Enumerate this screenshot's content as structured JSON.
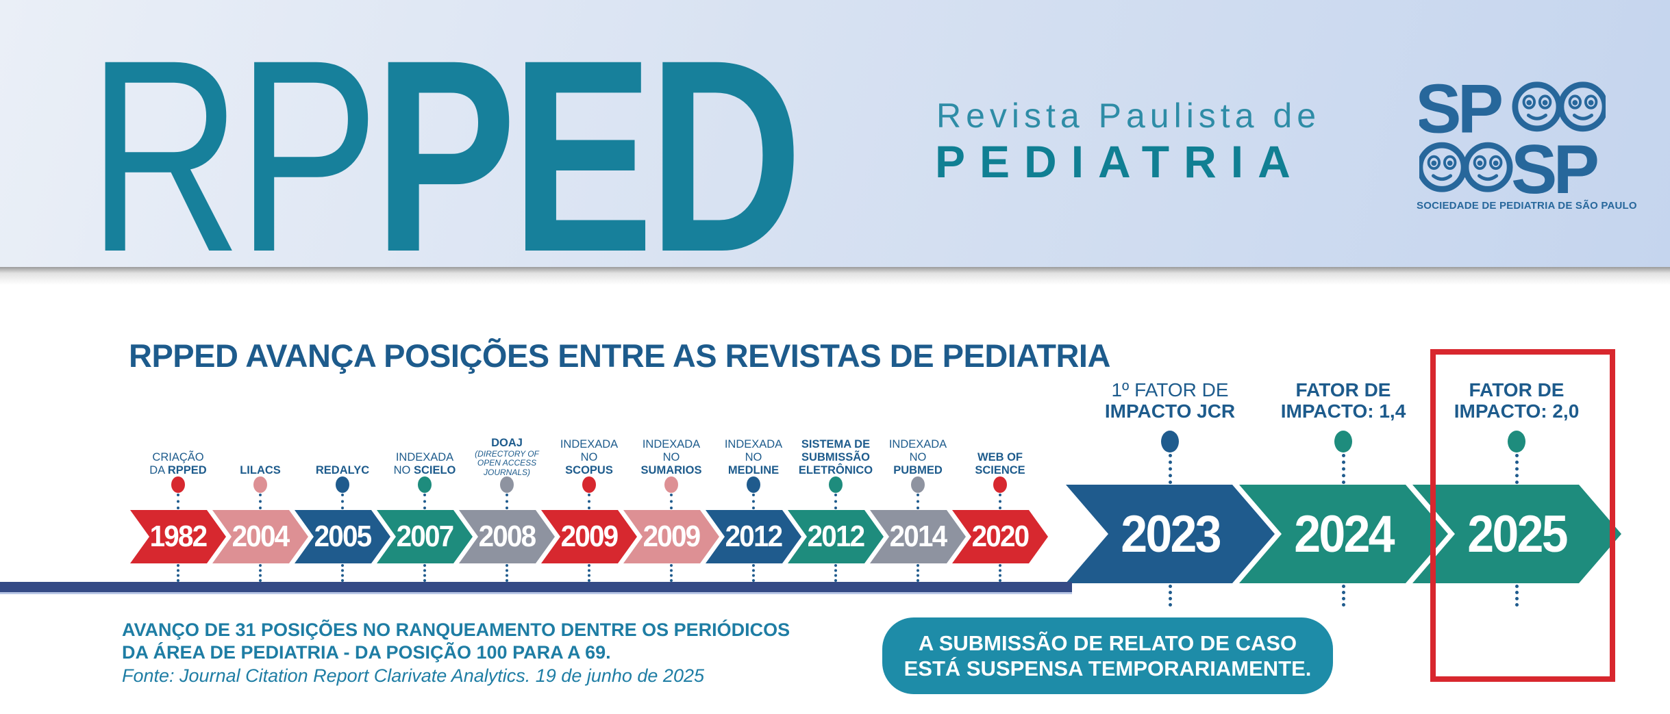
{
  "header": {
    "logo_acronym_thin": "RP",
    "logo_acronym_bold": "PED",
    "journal_line1": "Revista Paulista de",
    "journal_line2": "PEDIATRIA",
    "society_logo_text": "SPSP",
    "society_name": "SOCIEDADE DE PEDIATRIA DE SÃO PAULO"
  },
  "main": {
    "title": "RPPED AVANÇA POSIÇÕES ENTRE AS REVISTAS DE PEDIATRIA",
    "footnote_line1": "AVANÇO DE 31 POSIÇÕES NO RANQUEAMENTO DENTRE OS PERIÓDICOS",
    "footnote_line2": "DA ÁREA DE PEDIATRIA - DA POSIÇÃO 100 PARA A 69.",
    "footnote_source": "Fonte: Journal Citation Report Clarivate Analytics. 19 de junho de 2025",
    "notice_badge": {
      "line1": "A SUBMISSÃO DE RELATO DE CASO",
      "line2": "ESTÁ SUSPENSA TEMPORARIAMENTE."
    }
  },
  "colors": {
    "red": "#d7282f",
    "pink": "#dd9094",
    "navy": "#1f5b8d",
    "teal": "#1e8c7d",
    "gray": "#8e93a0",
    "connector": "#1f5b8d",
    "label": "#1d5b8c",
    "title": "#1d5b8c",
    "bottom_bar": "#344a85",
    "badge": "#1e8ca8",
    "footnote": "#1e7da4",
    "highlight_border": "#d8272e",
    "logo_teal": "#17809b",
    "society_navy": "#27679b"
  },
  "timeline": {
    "milestones": [
      {
        "year": "1982",
        "color": "red",
        "size": "small",
        "label": [
          {
            "segs": [
              {
                "t": "CRIAÇÃO"
              }
            ]
          },
          {
            "segs": [
              {
                "t": "DA "
              },
              {
                "t": "RPPED",
                "b": true
              }
            ]
          }
        ]
      },
      {
        "year": "2004",
        "color": "pink",
        "size": "small",
        "label": [
          {
            "segs": [
              {
                "t": "LILACS",
                "b": true
              }
            ]
          }
        ]
      },
      {
        "year": "2005",
        "color": "navy",
        "size": "small",
        "label": [
          {
            "segs": [
              {
                "t": "REDALYC",
                "b": true
              }
            ]
          }
        ]
      },
      {
        "year": "2007",
        "color": "teal",
        "size": "small",
        "label": [
          {
            "segs": [
              {
                "t": "INDEXADA"
              }
            ]
          },
          {
            "segs": [
              {
                "t": "NO "
              },
              {
                "t": "SCIELO",
                "b": true
              }
            ]
          }
        ]
      },
      {
        "year": "2008",
        "color": "gray",
        "size": "small",
        "label": [
          {
            "segs": [
              {
                "t": "DOAJ",
                "b": true
              }
            ]
          },
          {
            "sm": true,
            "segs": [
              {
                "t": "(DIRECTORY OF",
                "i": true
              }
            ]
          },
          {
            "sm": true,
            "segs": [
              {
                "t": "OPEN ACCESS",
                "i": true
              }
            ]
          },
          {
            "sm": true,
            "segs": [
              {
                "t": "JOURNALS)",
                "i": true
              }
            ]
          }
        ]
      },
      {
        "year": "2009",
        "color": "red",
        "size": "small",
        "label": [
          {
            "segs": [
              {
                "t": "INDEXADA"
              }
            ]
          },
          {
            "segs": [
              {
                "t": "NO"
              }
            ]
          },
          {
            "segs": [
              {
                "t": "SCOPUS",
                "b": true
              }
            ]
          }
        ]
      },
      {
        "year": "2009",
        "color": "pink",
        "size": "small",
        "label": [
          {
            "segs": [
              {
                "t": "INDEXADA"
              }
            ]
          },
          {
            "segs": [
              {
                "t": "NO"
              }
            ]
          },
          {
            "segs": [
              {
                "t": "SUMARIOS",
                "b": true
              }
            ]
          }
        ]
      },
      {
        "year": "2012",
        "color": "navy",
        "size": "small",
        "label": [
          {
            "segs": [
              {
                "t": "INDEXADA"
              }
            ]
          },
          {
            "segs": [
              {
                "t": "NO"
              }
            ]
          },
          {
            "segs": [
              {
                "t": "MEDLINE",
                "b": true
              }
            ]
          }
        ]
      },
      {
        "year": "2012",
        "color": "teal",
        "size": "small",
        "label": [
          {
            "segs": [
              {
                "t": "SISTEMA DE",
                "b": true
              }
            ]
          },
          {
            "segs": [
              {
                "t": "SUBMISSÃO",
                "b": true
              }
            ]
          },
          {
            "segs": [
              {
                "t": "ELETRÔNICO",
                "b": true
              }
            ]
          }
        ]
      },
      {
        "year": "2014",
        "color": "gray",
        "size": "small",
        "label": [
          {
            "segs": [
              {
                "t": "INDEXADA"
              }
            ]
          },
          {
            "segs": [
              {
                "t": "NO"
              }
            ]
          },
          {
            "segs": [
              {
                "t": "PUBMED",
                "b": true
              }
            ]
          }
        ]
      },
      {
        "year": "2020",
        "color": "red",
        "size": "small",
        "label": [
          {
            "segs": [
              {
                "t": "WEB OF",
                "b": true
              }
            ]
          },
          {
            "segs": [
              {
                "t": "SCIENCE",
                "b": true
              }
            ]
          }
        ]
      },
      {
        "year": "2023",
        "color": "navy",
        "size": "large",
        "label": [
          {
            "segs": [
              {
                "t": "1º FATOR DE"
              }
            ]
          },
          {
            "segs": [
              {
                "t": "IMPACTO JCR",
                "b": true
              }
            ]
          }
        ]
      },
      {
        "year": "2024",
        "color": "teal",
        "size": "large",
        "label": [
          {
            "segs": [
              {
                "t": "FATOR DE",
                "b": true
              }
            ]
          },
          {
            "segs": [
              {
                "t": "IMPACTO: 1,4",
                "b": true
              }
            ]
          }
        ]
      },
      {
        "year": "2025",
        "color": "teal",
        "size": "large",
        "highlighted": true,
        "label": [
          {
            "segs": [
              {
                "t": "FATOR DE",
                "b": true
              }
            ]
          },
          {
            "segs": [
              {
                "t": "IMPACTO: 2,0",
                "b": true
              }
            ]
          }
        ]
      }
    ]
  }
}
